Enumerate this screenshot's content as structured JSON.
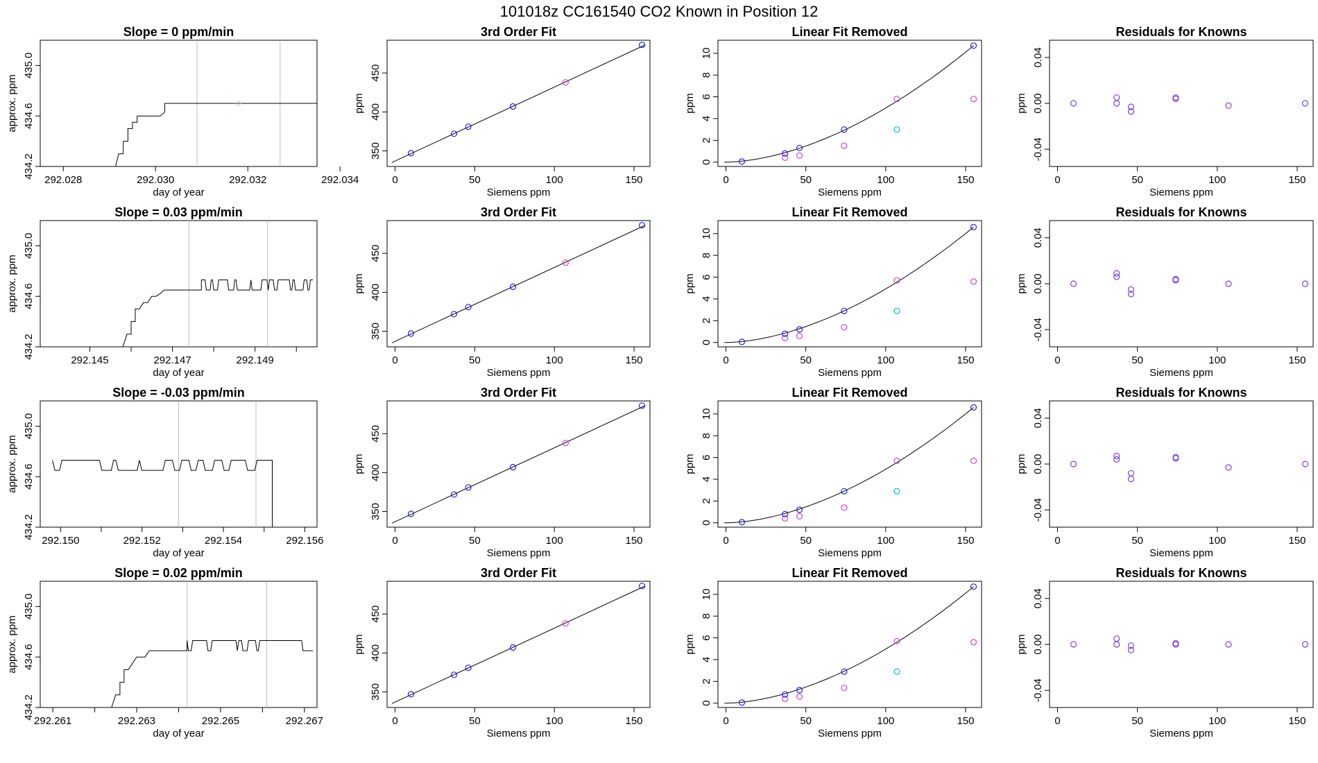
{
  "page": {
    "title": "101018z      CC161540    CO2 Known in Position  12"
  },
  "colors": {
    "trace": "#000000",
    "vline": "#bebebe",
    "blue": "#2020e0",
    "magenta": "#d040d0",
    "cyan": "#00bcd4",
    "purple": "#7b3fe0",
    "pink": "#ffb6c1"
  },
  "chart_data": [
    {
      "type": "line",
      "row": 0,
      "col": 0,
      "title": "Slope =  0  ppm/min",
      "xlabel": "day of year",
      "ylabel": "approx. ppm",
      "xlim": [
        292.0275,
        292.0335
      ],
      "ylim": [
        434.2,
        435.2
      ],
      "xticks": [
        "292.028",
        "292.030",
        "292.032",
        "292.034"
      ],
      "xtick_values": [
        292.028,
        292.03,
        292.032,
        292.034
      ],
      "yticks": [
        "434.2",
        "434.6",
        "435.0"
      ],
      "ytick_values": [
        434.2,
        434.6,
        435.0
      ],
      "vlines": [
        292.0309,
        292.0327
      ],
      "pink_point": [
        292.0318,
        434.7
      ],
      "x": [
        292.0291,
        292.0292,
        292.0293,
        292.0293,
        292.0294,
        292.0294,
        292.0295,
        292.0295,
        292.0296,
        292.0296,
        292.0297,
        292.0298,
        292.0299,
        292.03,
        292.0301,
        292.0302,
        292.0302,
        292.0303,
        292.0304,
        292.0337
      ],
      "y": [
        434.15,
        434.3,
        434.3,
        434.4,
        434.4,
        434.5,
        434.5,
        434.55,
        434.55,
        434.6,
        434.6,
        434.6,
        434.6,
        434.6,
        434.6,
        434.63,
        434.7,
        434.7,
        434.7,
        434.7
      ]
    },
    {
      "type": "scatter",
      "row": 0,
      "col": 1,
      "title": "3rd Order Fit",
      "xlabel": "Siemens ppm",
      "ylabel": "ppm",
      "xlim": [
        -5,
        160
      ],
      "ylim": [
        330,
        492
      ],
      "xticks": [
        "0",
        "50",
        "100",
        "150"
      ],
      "xtick_values": [
        0,
        50,
        100,
        150
      ],
      "yticks": [
        "350",
        "400",
        "450"
      ],
      "ytick_values": [
        350,
        400,
        450
      ],
      "blue_x": [
        10,
        37,
        46,
        74,
        155
      ],
      "blue_y": [
        347,
        372,
        381,
        407,
        486
      ],
      "magenta_x": [
        107
      ],
      "magenta_y": [
        438
      ]
    },
    {
      "type": "scatter",
      "row": 0,
      "col": 2,
      "title": "Linear Fit Removed",
      "xlabel": "Siemens ppm",
      "ylabel": "ppm",
      "xlim": [
        -5,
        160
      ],
      "ylim": [
        -0.4,
        11.2
      ],
      "xticks": [
        "0",
        "50",
        "100",
        "150"
      ],
      "xtick_values": [
        0,
        50,
        100,
        150
      ],
      "yticks": [
        "0",
        "2",
        "4",
        "6",
        "8",
        "10"
      ],
      "ytick_values": [
        0,
        2,
        4,
        6,
        8,
        10
      ],
      "curve_end": 10.7,
      "blue_x": [
        10,
        37,
        46,
        74,
        155
      ],
      "blue_y": [
        0.05,
        0.8,
        1.3,
        3.0,
        10.7
      ],
      "magenta_x": [
        37,
        46,
        74,
        107,
        155
      ],
      "magenta_y": [
        0.4,
        0.6,
        1.5,
        5.8,
        5.8
      ],
      "cyan_x": [
        107
      ],
      "cyan_y": [
        3.0
      ]
    },
    {
      "type": "scatter",
      "row": 0,
      "col": 3,
      "title": "Residuals for Knowns",
      "xlabel": "Siemens ppm",
      "ylabel": "ppm",
      "xlim": [
        -5,
        160
      ],
      "ylim": [
        -0.055,
        0.055
      ],
      "xticks": [
        "0",
        "50",
        "100",
        "150"
      ],
      "xtick_values": [
        0,
        50,
        100,
        150
      ],
      "yticks": [
        "-0.04",
        "0.00",
        "0.04"
      ],
      "ytick_values": [
        -0.04,
        0.0,
        0.04
      ],
      "purple_x": [
        10,
        37,
        37,
        46,
        46,
        74,
        74,
        107,
        155
      ],
      "purple_y": [
        0.0,
        0.005,
        0.0,
        -0.003,
        -0.007,
        0.005,
        0.004,
        -0.002,
        0.0
      ]
    },
    {
      "type": "line",
      "row": 1,
      "col": 0,
      "title": "Slope =  0.03  ppm/min",
      "xlabel": "day of year",
      "ylabel": "approx. ppm",
      "xlim": [
        292.1438,
        292.1505
      ],
      "ylim": [
        434.2,
        435.2
      ],
      "xticks": [
        "292.145",
        "292.147",
        "292.149"
      ],
      "xtick_values": [
        292.145,
        292.146,
        292.147,
        292.148,
        292.149,
        292.15
      ],
      "xtick_labelled": [
        true,
        false,
        true,
        false,
        true,
        false
      ],
      "yticks": [
        "434.2",
        "434.6",
        "435.0"
      ],
      "ytick_values": [
        434.2,
        434.6,
        435.0
      ],
      "vlines": [
        292.1474,
        292.1493
      ],
      "pattern": "s1",
      "x": [
        292.1458,
        292.1459,
        292.146,
        292.146,
        292.1461,
        292.1461,
        292.1462,
        292.1463,
        292.1464,
        292.1465,
        292.1466,
        292.1467,
        292.1468,
        292.1477
      ],
      "y": [
        434.2,
        434.3,
        434.3,
        434.4,
        434.4,
        434.5,
        434.5,
        434.55,
        434.55,
        434.6,
        434.6,
        434.62,
        434.65,
        434.65
      ],
      "noise_from": 292.1477,
      "noise_to": 292.1504,
      "noise_low": 434.65,
      "noise_high": 434.73
    },
    {
      "type": "scatter",
      "row": 1,
      "col": 1,
      "title": "3rd Order Fit",
      "xlabel": "Siemens ppm",
      "ylabel": "ppm",
      "xlim": [
        -5,
        160
      ],
      "ylim": [
        330,
        492
      ],
      "xticks": [
        "0",
        "50",
        "100",
        "150"
      ],
      "xtick_values": [
        0,
        50,
        100,
        150
      ],
      "yticks": [
        "350",
        "400",
        "450"
      ],
      "ytick_values": [
        350,
        400,
        450
      ],
      "blue_x": [
        10,
        37,
        46,
        74,
        155
      ],
      "blue_y": [
        347,
        372,
        381,
        407,
        486
      ],
      "magenta_x": [
        107
      ],
      "magenta_y": [
        438
      ]
    },
    {
      "type": "scatter",
      "row": 1,
      "col": 2,
      "title": "Linear Fit Removed",
      "xlabel": "Siemens ppm",
      "ylabel": "ppm",
      "xlim": [
        -5,
        160
      ],
      "ylim": [
        -0.4,
        11.2
      ],
      "xticks": [
        "0",
        "50",
        "100",
        "150"
      ],
      "xtick_values": [
        0,
        50,
        100,
        150
      ],
      "yticks": [
        "0",
        "2",
        "4",
        "6",
        "8",
        "10"
      ],
      "ytick_values": [
        0,
        2,
        4,
        6,
        8,
        10
      ],
      "curve_end": 10.6,
      "blue_x": [
        10,
        37,
        46,
        74,
        155
      ],
      "blue_y": [
        0.05,
        0.8,
        1.2,
        2.9,
        10.6
      ],
      "magenta_x": [
        37,
        46,
        74,
        107,
        155
      ],
      "magenta_y": [
        0.4,
        0.6,
        1.4,
        5.7,
        5.6
      ],
      "cyan_x": [
        107
      ],
      "cyan_y": [
        2.9
      ]
    },
    {
      "type": "scatter",
      "row": 1,
      "col": 3,
      "title": "Residuals for Knowns",
      "xlabel": "Siemens ppm",
      "ylabel": "ppm",
      "xlim": [
        -5,
        160
      ],
      "ylim": [
        -0.055,
        0.055
      ],
      "xticks": [
        "0",
        "50",
        "100",
        "150"
      ],
      "xtick_values": [
        0,
        50,
        100,
        150
      ],
      "yticks": [
        "-0.04",
        "0.00",
        "0.04"
      ],
      "ytick_values": [
        -0.04,
        0.0,
        0.04
      ],
      "purple_x": [
        10,
        37,
        37,
        46,
        46,
        74,
        74,
        107,
        155
      ],
      "purple_y": [
        0.0,
        0.009,
        0.006,
        -0.005,
        -0.009,
        0.004,
        0.003,
        0.0,
        0.0
      ]
    },
    {
      "type": "line",
      "row": 2,
      "col": 0,
      "title": "Slope =  -0.03  ppm/min",
      "xlabel": "day of year",
      "ylabel": "approx. ppm",
      "xlim": [
        292.1495,
        292.1563
      ],
      "ylim": [
        434.2,
        435.2
      ],
      "xticks": [
        "292.150",
        "292.152",
        "292.154",
        "292.156"
      ],
      "xtick_values": [
        292.15,
        292.151,
        292.152,
        292.153,
        292.154,
        292.155,
        292.156
      ],
      "xtick_labelled": [
        true,
        false,
        true,
        false,
        true,
        false,
        true
      ],
      "yticks": [
        "434.2",
        "434.6",
        "435.0"
      ],
      "ytick_values": [
        434.2,
        434.6,
        435.0
      ],
      "vlines": [
        292.1529,
        292.1548
      ],
      "pattern": "s2",
      "noise_from": 292.1498,
      "noise_to": 292.155,
      "noise_low": 434.65,
      "noise_high": 434.73,
      "drop_x": [
        292.155,
        292.1552,
        292.1552
      ],
      "drop_y": [
        434.73,
        434.73,
        434.15
      ]
    },
    {
      "type": "scatter",
      "row": 2,
      "col": 1,
      "title": "3rd Order Fit",
      "xlabel": "Siemens ppm",
      "ylabel": "ppm",
      "xlim": [
        -5,
        160
      ],
      "ylim": [
        330,
        492
      ],
      "xticks": [
        "0",
        "50",
        "100",
        "150"
      ],
      "xtick_values": [
        0,
        50,
        100,
        150
      ],
      "yticks": [
        "350",
        "400",
        "450"
      ],
      "ytick_values": [
        350,
        400,
        450
      ],
      "blue_x": [
        10,
        37,
        46,
        74,
        155
      ],
      "blue_y": [
        347,
        372,
        381,
        407,
        486
      ],
      "magenta_x": [
        107
      ],
      "magenta_y": [
        438
      ]
    },
    {
      "type": "scatter",
      "row": 2,
      "col": 2,
      "title": "Linear Fit Removed",
      "xlabel": "Siemens ppm",
      "ylabel": "ppm",
      "xlim": [
        -5,
        160
      ],
      "ylim": [
        -0.4,
        11.2
      ],
      "xticks": [
        "0",
        "50",
        "100",
        "150"
      ],
      "xtick_values": [
        0,
        50,
        100,
        150
      ],
      "yticks": [
        "0",
        "2",
        "4",
        "6",
        "8",
        "10"
      ],
      "ytick_values": [
        0,
        2,
        4,
        6,
        8,
        10
      ],
      "curve_end": 10.6,
      "blue_x": [
        10,
        37,
        46,
        74,
        155
      ],
      "blue_y": [
        0.05,
        0.8,
        1.2,
        2.9,
        10.6
      ],
      "magenta_x": [
        37,
        46,
        74,
        107,
        155
      ],
      "magenta_y": [
        0.4,
        0.6,
        1.4,
        5.7,
        5.7
      ],
      "cyan_x": [
        107
      ],
      "cyan_y": [
        2.9
      ]
    },
    {
      "type": "scatter",
      "row": 2,
      "col": 3,
      "title": "Residuals for Knowns",
      "xlabel": "Siemens ppm",
      "ylabel": "ppm",
      "xlim": [
        -5,
        160
      ],
      "ylim": [
        -0.055,
        0.055
      ],
      "xticks": [
        "0",
        "50",
        "100",
        "150"
      ],
      "xtick_values": [
        0,
        50,
        100,
        150
      ],
      "yticks": [
        "-0.04",
        "0.00",
        "0.04"
      ],
      "ytick_values": [
        -0.04,
        0.0,
        0.04
      ],
      "purple_x": [
        10,
        37,
        37,
        46,
        46,
        74,
        74,
        107,
        155
      ],
      "purple_y": [
        0.0,
        0.007,
        0.004,
        -0.008,
        -0.013,
        0.006,
        0.005,
        -0.003,
        0.0
      ]
    },
    {
      "type": "line",
      "row": 3,
      "col": 0,
      "title": "Slope =  0.02  ppm/min",
      "xlabel": "day of year",
      "ylabel": "approx. ppm",
      "xlim": [
        292.2607,
        292.2673
      ],
      "ylim": [
        434.2,
        435.2
      ],
      "xticks": [
        "292.261",
        "292.263",
        "292.265",
        "292.267"
      ],
      "xtick_values": [
        292.261,
        292.262,
        292.263,
        292.264,
        292.265,
        292.266,
        292.267
      ],
      "xtick_labelled": [
        true,
        false,
        true,
        false,
        true,
        false,
        true
      ],
      "yticks": [
        "434.2",
        "434.6",
        "435.0"
      ],
      "ytick_values": [
        434.2,
        434.6,
        435.0
      ],
      "vlines": [
        292.2642,
        292.2661
      ],
      "pattern": "s3",
      "x": [
        292.2624,
        292.2625,
        292.2626,
        292.2626,
        292.2627,
        292.2627,
        292.2628,
        292.2629,
        292.263,
        292.2632,
        292.2633,
        292.2635,
        292.2642
      ],
      "y": [
        434.2,
        434.3,
        434.3,
        434.4,
        434.4,
        434.5,
        434.5,
        434.55,
        434.6,
        434.6,
        434.65,
        434.65,
        434.65
      ],
      "noise_from": 292.2642,
      "noise_to": 292.2672,
      "noise_low": 434.65,
      "noise_high": 434.73
    },
    {
      "type": "scatter",
      "row": 3,
      "col": 1,
      "title": "3rd Order Fit",
      "xlabel": "Siemens ppm",
      "ylabel": "ppm",
      "xlim": [
        -5,
        160
      ],
      "ylim": [
        330,
        492
      ],
      "xticks": [
        "0",
        "50",
        "100",
        "150"
      ],
      "xtick_values": [
        0,
        50,
        100,
        150
      ],
      "yticks": [
        "350",
        "400",
        "450"
      ],
      "ytick_values": [
        350,
        400,
        450
      ],
      "blue_x": [
        10,
        37,
        46,
        74,
        155
      ],
      "blue_y": [
        347,
        372,
        381,
        407,
        486
      ],
      "magenta_x": [
        107
      ],
      "magenta_y": [
        438
      ]
    },
    {
      "type": "scatter",
      "row": 3,
      "col": 2,
      "title": "Linear Fit Removed",
      "xlabel": "Siemens ppm",
      "ylabel": "ppm",
      "xlim": [
        -5,
        160
      ],
      "ylim": [
        -0.4,
        11.2
      ],
      "xticks": [
        "0",
        "50",
        "100",
        "150"
      ],
      "xtick_values": [
        0,
        50,
        100,
        150
      ],
      "yticks": [
        "0",
        "2",
        "4",
        "6",
        "8",
        "10"
      ],
      "ytick_values": [
        0,
        2,
        4,
        6,
        8,
        10
      ],
      "curve_end": 10.7,
      "blue_x": [
        10,
        37,
        46,
        74,
        155
      ],
      "blue_y": [
        0.05,
        0.8,
        1.2,
        2.9,
        10.7
      ],
      "magenta_x": [
        37,
        46,
        74,
        107,
        155
      ],
      "magenta_y": [
        0.4,
        0.6,
        1.4,
        5.7,
        5.6
      ],
      "cyan_x": [
        107
      ],
      "cyan_y": [
        2.9
      ]
    },
    {
      "type": "scatter",
      "row": 3,
      "col": 3,
      "title": "Residuals for Knowns",
      "xlabel": "Siemens ppm",
      "ylabel": "ppm",
      "xlim": [
        -5,
        160
      ],
      "ylim": [
        -0.055,
        0.055
      ],
      "xticks": [
        "0",
        "50",
        "100",
        "150"
      ],
      "xtick_values": [
        0,
        50,
        100,
        150
      ],
      "yticks": [
        "-0.04",
        "0.00",
        "0.04"
      ],
      "ytick_values": [
        -0.04,
        0.0,
        0.04
      ],
      "purple_x": [
        10,
        37,
        37,
        46,
        46,
        74,
        74,
        107,
        155
      ],
      "purple_y": [
        0.0,
        0.005,
        0.0,
        -0.001,
        -0.005,
        0.001,
        0.0,
        0.0,
        0.0
      ]
    }
  ]
}
